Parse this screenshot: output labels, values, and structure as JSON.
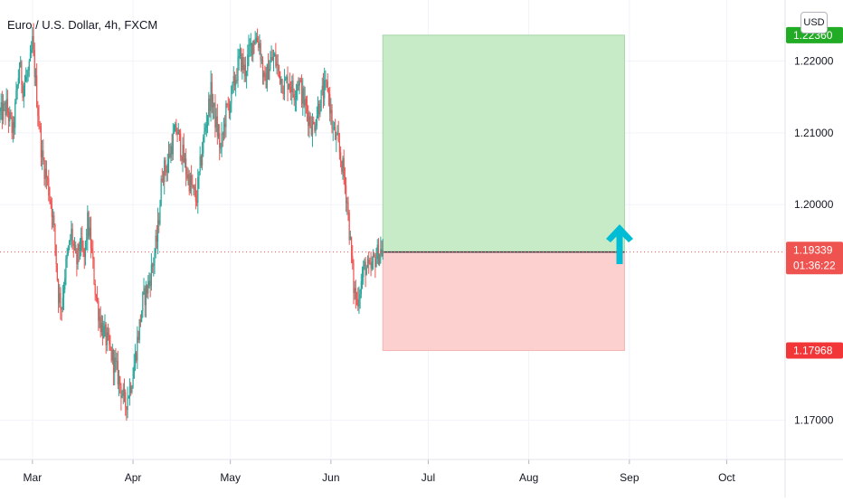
{
  "chart_data": {
    "type": "candlestick",
    "title": "Euro / U.S. Dollar, 4h, FXCM",
    "currency": "USD",
    "ylim": [
      1.1645,
      1.2285
    ],
    "y_ticks": [
      "1.17000",
      "1.20000",
      "1.21000",
      "1.22000"
    ],
    "x_ticks": [
      {
        "label": "Mar",
        "t": 0.0
      },
      {
        "label": "Apr",
        "t": 31.0
      },
      {
        "label": "May",
        "t": 61.0
      },
      {
        "label": "Jun",
        "t": 92.0
      },
      {
        "label": "Jul",
        "t": 122.0
      },
      {
        "label": "Aug",
        "t": 153.0
      },
      {
        "label": "Sep",
        "t": 184.0
      },
      {
        "label": "Oct",
        "t": 214.0
      }
    ],
    "price_path": [
      [
        -10.0,
        1.2125
      ],
      [
        -8.0,
        1.2135
      ],
      [
        -6.0,
        1.21
      ],
      [
        -4.0,
        1.2195
      ],
      [
        -3.0,
        1.2165
      ],
      [
        -1.0,
        1.2185
      ],
      [
        0.0,
        1.2225
      ],
      [
        1.5,
        1.214
      ],
      [
        3.0,
        1.2065
      ],
      [
        4.5,
        1.2035
      ],
      [
        6.0,
        1.1995
      ],
      [
        7.0,
        1.1945
      ],
      [
        8.0,
        1.1875
      ],
      [
        9.0,
        1.186
      ],
      [
        10.0,
        1.1905
      ],
      [
        12.0,
        1.196
      ],
      [
        13.5,
        1.1915
      ],
      [
        14.5,
        1.1945
      ],
      [
        16.0,
        1.1925
      ],
      [
        17.0,
        1.1975
      ],
      [
        18.0,
        1.1945
      ],
      [
        19.5,
        1.1875
      ],
      [
        21.0,
        1.1835
      ],
      [
        22.5,
        1.1815
      ],
      [
        24.0,
        1.1795
      ],
      [
        25.5,
        1.1775
      ],
      [
        27.0,
        1.175
      ],
      [
        28.5,
        1.172
      ],
      [
        30.0,
        1.1745
      ],
      [
        31.0,
        1.1765
      ],
      [
        32.5,
        1.1815
      ],
      [
        34.0,
        1.1865
      ],
      [
        35.5,
        1.1885
      ],
      [
        37.0,
        1.1915
      ],
      [
        38.5,
        1.1955
      ],
      [
        40.0,
        1.2045
      ],
      [
        41.5,
        1.2055
      ],
      [
        43.0,
        1.2085
      ],
      [
        44.5,
        1.2105
      ],
      [
        46.0,
        1.2075
      ],
      [
        47.5,
        1.2045
      ],
      [
        49.0,
        1.2025
      ],
      [
        50.5,
        1.2005
      ],
      [
        52.0,
        1.2065
      ],
      [
        53.5,
        1.2115
      ],
      [
        55.0,
        1.2155
      ],
      [
        56.5,
        1.2115
      ],
      [
        58.0,
        1.2075
      ],
      [
        59.5,
        1.2125
      ],
      [
        61.0,
        1.2145
      ],
      [
        62.5,
        1.2175
      ],
      [
        64.0,
        1.2205
      ],
      [
        65.5,
        1.2185
      ],
      [
        67.0,
        1.2215
      ],
      [
        68.5,
        1.2235
      ],
      [
        70.0,
        1.2225
      ],
      [
        71.5,
        1.2165
      ],
      [
        73.0,
        1.2195
      ],
      [
        74.5,
        1.2205
      ],
      [
        76.0,
        1.2185
      ],
      [
        77.5,
        1.2165
      ],
      [
        79.0,
        1.2175
      ],
      [
        80.5,
        1.2155
      ],
      [
        82.0,
        1.2175
      ],
      [
        83.5,
        1.2145
      ],
      [
        85.0,
        1.2125
      ],
      [
        86.5,
        1.2105
      ],
      [
        88.0,
        1.2135
      ],
      [
        89.5,
        1.2155
      ],
      [
        91.0,
        1.2165
      ],
      [
        92.5,
        1.2105
      ],
      [
        94.0,
        1.2085
      ],
      [
        95.5,
        1.2055
      ],
      [
        97.0,
        1.2005
      ],
      [
        98.0,
        1.1945
      ],
      [
        99.0,
        1.1885
      ],
      [
        100.0,
        1.1865
      ],
      [
        101.0,
        1.1885
      ],
      [
        102.5,
        1.1915
      ],
      [
        104.0,
        1.1905
      ],
      [
        105.5,
        1.1925
      ],
      [
        107.0,
        1.1935
      ],
      [
        108.0,
        1.19355
      ]
    ],
    "current_price": "1.19355",
    "last_price": "1.19339",
    "countdown": "01:36:22",
    "position": {
      "type": "long",
      "entry": 1.19339,
      "target": "1.22360",
      "stop": "1.17968",
      "start_t": 108.0,
      "end_t": 182.5
    },
    "colors": {
      "up": "#26a69a",
      "down": "#ef5350",
      "profit_zone": "#c8ebc7",
      "loss_zone": "#fbd0cf",
      "target_label": "#22ab24",
      "stop_label": "#f23638",
      "current_label": "#363a45",
      "last_label": "#ef5350",
      "arrow": "#00bcd4",
      "grid": "#f0f3fa",
      "axis_text": "#131722"
    },
    "grid": true
  }
}
